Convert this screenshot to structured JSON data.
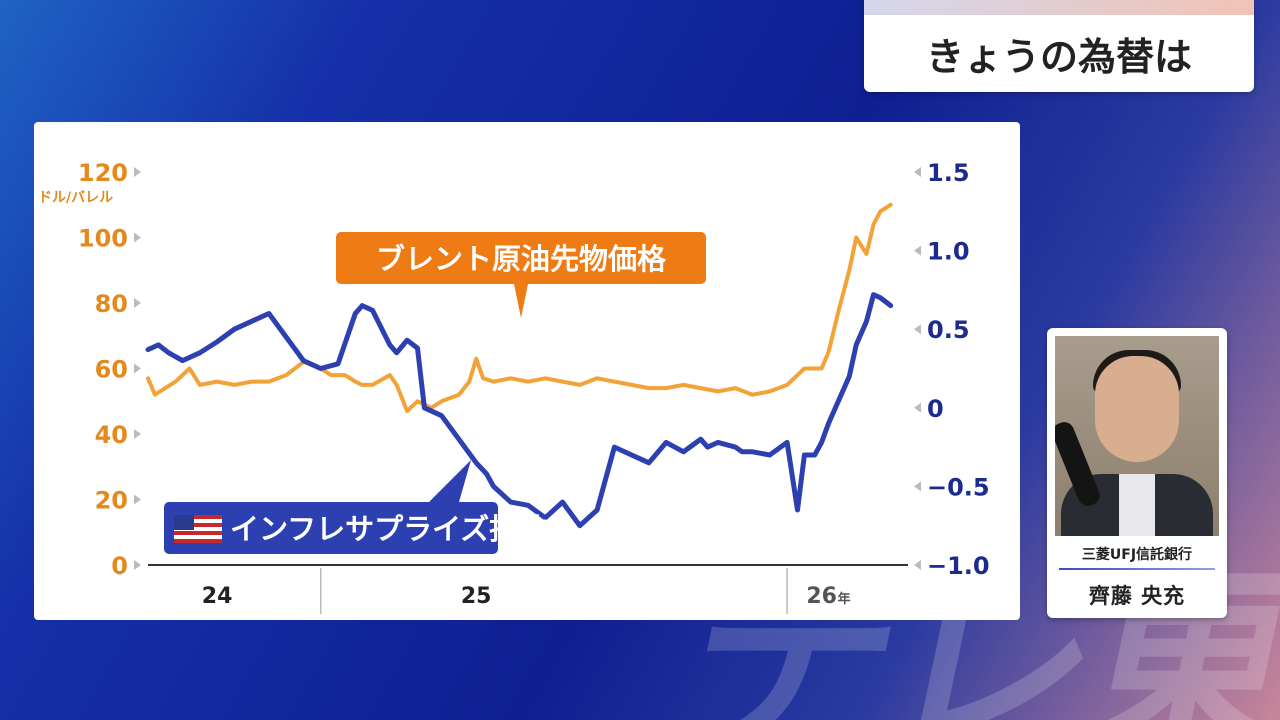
{
  "header": {
    "title": "きょうの為替は"
  },
  "watermark": "テレ東",
  "person": {
    "company": "三菱UFJ信託銀行",
    "name": "齊藤 央充"
  },
  "chart_data": {
    "type": "line",
    "unit_left": "ドル/バレル",
    "x_ticks": [
      {
        "label": "24",
        "x": 2024.2
      },
      {
        "label": "25",
        "x": 2024.95
      },
      {
        "label": "26",
        "x": 2025.95
      }
    ],
    "year_suffix": "年",
    "year_dividers": [
      2024.5,
      2025.85
    ],
    "xlim": [
      2024.0,
      2026.2
    ],
    "y_left": {
      "lim": [
        0,
        120
      ],
      "ticks": [
        "0",
        "20",
        "40",
        "60",
        "80",
        "100",
        "120"
      ]
    },
    "y_right": {
      "lim": [
        -1.0,
        1.5
      ],
      "ticks": [
        "−1.0",
        "−0.5",
        "0",
        "0.5",
        "1.0",
        "1.5"
      ]
    },
    "colors": {
      "brent": "#f3a238",
      "surprise": "#2d40b2",
      "left_axis": "#e3891e",
      "right_axis": "#1d2b8f"
    },
    "series": [
      {
        "name": "ブレント原油先物価格",
        "axis": "left",
        "x": [
          2024.0,
          2024.02,
          2024.05,
          2024.08,
          2024.12,
          2024.15,
          2024.2,
          2024.25,
          2024.3,
          2024.35,
          2024.4,
          2024.45,
          2024.5,
          2024.53,
          2024.57,
          2024.6,
          2024.62,
          2024.65,
          2024.7,
          2024.72,
          2024.75,
          2024.78,
          2024.8,
          2024.82,
          2024.85,
          2024.9,
          2024.93,
          2024.95,
          2024.97,
          2025.0,
          2025.05,
          2025.1,
          2025.15,
          2025.2,
          2025.25,
          2025.3,
          2025.35,
          2025.4,
          2025.45,
          2025.5,
          2025.55,
          2025.6,
          2025.65,
          2025.7,
          2025.75,
          2025.8,
          2025.85,
          2025.88,
          2025.9,
          2025.93,
          2025.95,
          2025.97,
          2026.0,
          2026.03,
          2026.05,
          2026.08,
          2026.1,
          2026.12,
          2026.15
        ],
        "values": [
          57,
          52,
          54,
          56,
          60,
          55,
          56,
          55,
          56,
          56,
          58,
          62,
          60,
          58,
          58,
          56,
          55,
          55,
          58,
          55,
          47,
          50,
          49,
          48,
          50,
          52,
          56,
          63,
          57,
          56,
          57,
          56,
          57,
          56,
          55,
          57,
          56,
          55,
          54,
          54,
          55,
          54,
          53,
          54,
          52,
          53,
          55,
          58,
          60,
          60,
          60,
          65,
          78,
          90,
          100,
          95,
          104,
          108,
          110
        ]
      },
      {
        "name": "インフレサプライズ指数",
        "axis": "right",
        "x": [
          2024.0,
          2024.03,
          2024.06,
          2024.1,
          2024.15,
          2024.2,
          2024.25,
          2024.3,
          2024.35,
          2024.4,
          2024.45,
          2024.5,
          2024.55,
          2024.6,
          2024.62,
          2024.65,
          2024.7,
          2024.72,
          2024.75,
          2024.78,
          2024.8,
          2024.85,
          2024.9,
          2024.95,
          2024.98,
          2025.0,
          2025.05,
          2025.1,
          2025.15,
          2025.2,
          2025.25,
          2025.3,
          2025.35,
          2025.4,
          2025.45,
          2025.5,
          2025.55,
          2025.6,
          2025.62,
          2025.65,
          2025.7,
          2025.72,
          2025.75,
          2025.8,
          2025.85,
          2025.88,
          2025.9,
          2025.93,
          2025.95,
          2025.97,
          2026.0,
          2026.03,
          2026.05,
          2026.08,
          2026.1,
          2026.12,
          2026.15
        ],
        "values": [
          0.37,
          0.4,
          0.35,
          0.3,
          0.35,
          0.42,
          0.5,
          0.55,
          0.6,
          0.45,
          0.3,
          0.25,
          0.28,
          0.6,
          0.65,
          0.62,
          0.4,
          0.35,
          0.43,
          0.38,
          0.0,
          -0.05,
          -0.2,
          -0.35,
          -0.42,
          -0.5,
          -0.6,
          -0.62,
          -0.7,
          -0.6,
          -0.75,
          -0.65,
          -0.25,
          -0.3,
          -0.35,
          -0.22,
          -0.28,
          -0.2,
          -0.25,
          -0.22,
          -0.25,
          -0.28,
          -0.28,
          -0.3,
          -0.22,
          -0.65,
          -0.3,
          -0.3,
          -0.22,
          -0.1,
          0.05,
          0.2,
          0.4,
          0.55,
          0.72,
          0.7,
          0.65
        ]
      }
    ],
    "annotations": [
      {
        "text": "ブレント原油先物価格",
        "series": 0
      },
      {
        "text": "インフレサプライズ指数",
        "series": 1,
        "flag": "us-flag-icon"
      }
    ]
  }
}
